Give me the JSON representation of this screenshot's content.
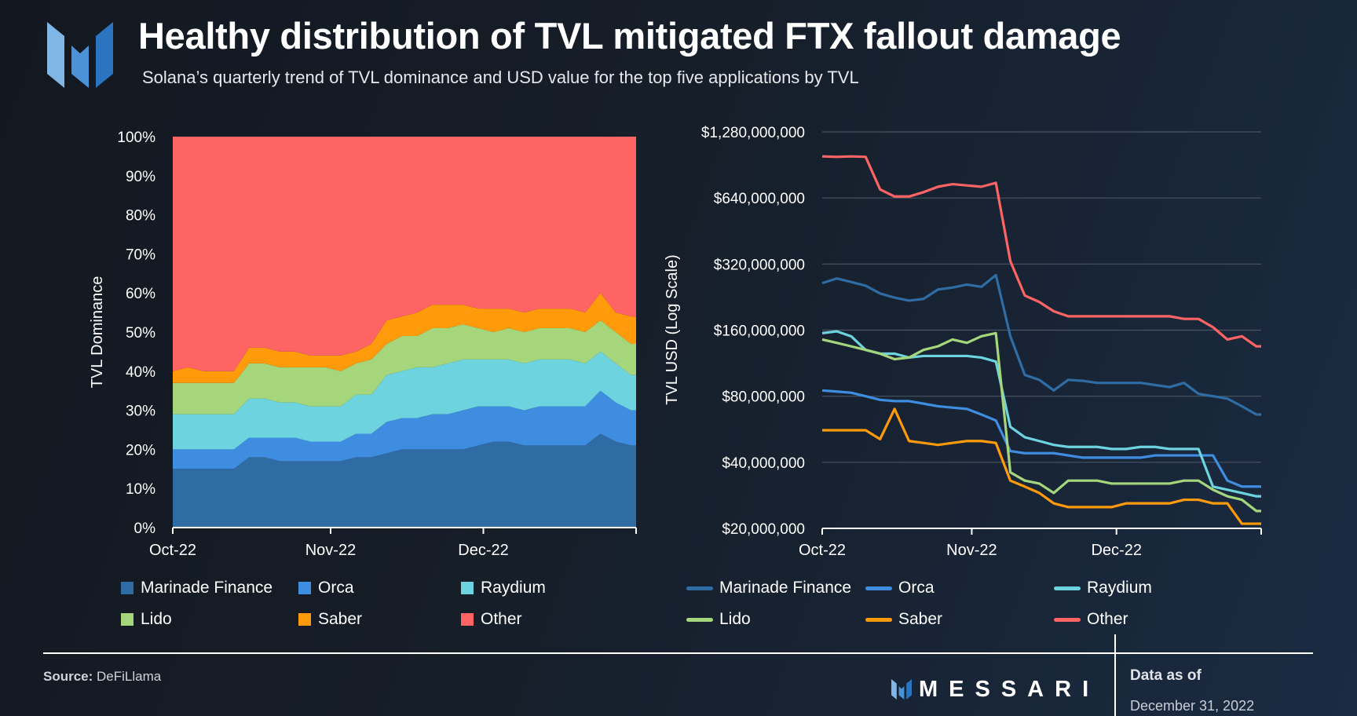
{
  "title": "Healthy distribution of TVL mitigated FTX fallout damage",
  "subtitle": "Solana’s quarterly trend of TVL dominance and USD value for the top five applications by TVL",
  "footer": {
    "source_label": "Source:",
    "source_value": "DeFiLlama",
    "brand": "MESSARI",
    "data_as_of_label": "Data as of",
    "data_as_of_date": "December 31, 2022"
  },
  "colors": {
    "Marinade Finance": "#2f6ca3",
    "Orca": "#3f8de0",
    "Raydium": "#6dd3df",
    "Lido": "#a6d67c",
    "Saber": "#ff9a0a",
    "Other": "#ff6464"
  },
  "chart_data": [
    {
      "type": "area",
      "stacked": true,
      "ylabel": "TVL Dominance",
      "xlabel": "",
      "ylim": [
        0,
        100
      ],
      "y_ticks": [
        "0%",
        "10%",
        "20%",
        "30%",
        "40%",
        "50%",
        "60%",
        "70%",
        "80%",
        "90%",
        "100%"
      ],
      "x_ticks": [
        {
          "label": "Oct-22",
          "date": "2022-10-01"
        },
        {
          "label": "Nov-22",
          "date": "2022-11-01"
        },
        {
          "label": "Dec-22",
          "date": "2022-12-01"
        }
      ],
      "xlim": [
        "2022-10-01",
        "2022-12-31"
      ],
      "grid": false,
      "legend": "bottom",
      "x": [
        "2022-10-01",
        "2022-10-04",
        "2022-10-07",
        "2022-10-10",
        "2022-10-13",
        "2022-10-16",
        "2022-10-19",
        "2022-10-22",
        "2022-10-25",
        "2022-10-28",
        "2022-10-31",
        "2022-11-03",
        "2022-11-06",
        "2022-11-09",
        "2022-11-12",
        "2022-11-15",
        "2022-11-18",
        "2022-11-21",
        "2022-11-24",
        "2022-11-27",
        "2022-11-30",
        "2022-12-03",
        "2022-12-06",
        "2022-12-09",
        "2022-12-12",
        "2022-12-15",
        "2022-12-18",
        "2022-12-21",
        "2022-12-24",
        "2022-12-27",
        "2022-12-30"
      ],
      "series": [
        {
          "name": "Marinade Finance",
          "values": [
            15,
            15,
            15,
            15,
            15,
            18,
            18,
            17,
            17,
            17,
            17,
            17,
            18,
            18,
            19,
            20,
            20,
            20,
            20,
            20,
            21,
            22,
            22,
            21,
            21,
            21,
            21,
            21,
            24,
            22,
            21
          ]
        },
        {
          "name": "Orca",
          "values": [
            5,
            5,
            5,
            5,
            5,
            5,
            5,
            6,
            6,
            5,
            5,
            5,
            6,
            6,
            8,
            8,
            8,
            9,
            9,
            10,
            10,
            9,
            9,
            9,
            10,
            10,
            10,
            10,
            11,
            10,
            9
          ]
        },
        {
          "name": "Raydium",
          "values": [
            9,
            9,
            9,
            9,
            9,
            10,
            10,
            9,
            9,
            9,
            9,
            9,
            10,
            10,
            12,
            12,
            13,
            12,
            13,
            13,
            12,
            12,
            12,
            12,
            12,
            12,
            12,
            11,
            10,
            10,
            9
          ]
        },
        {
          "name": "Lido",
          "values": [
            8,
            8,
            8,
            8,
            8,
            9,
            9,
            9,
            9,
            10,
            10,
            9,
            8,
            9,
            8,
            9,
            8,
            10,
            9,
            9,
            8,
            7,
            8,
            8,
            8,
            8,
            8,
            8,
            8,
            8,
            8
          ]
        },
        {
          "name": "Saber",
          "values": [
            3,
            4,
            3,
            3,
            3,
            4,
            4,
            4,
            4,
            3,
            3,
            4,
            3,
            4,
            6,
            5,
            6,
            6,
            6,
            5,
            5,
            6,
            5,
            5,
            5,
            5,
            5,
            5,
            7,
            5,
            7
          ]
        },
        {
          "name": "Other",
          "values": [
            60,
            59,
            60,
            60,
            60,
            54,
            54,
            55,
            55,
            56,
            56,
            56,
            55,
            53,
            47,
            46,
            45,
            43,
            43,
            43,
            44,
            44,
            44,
            45,
            44,
            44,
            44,
            45,
            40,
            45,
            46
          ]
        }
      ]
    },
    {
      "type": "line",
      "ylabel": "TVL USD (Log Scale)",
      "xlabel": "",
      "yscale": "log2",
      "ylim": [
        20000000,
        1280000000
      ],
      "y_ticks": [
        {
          "value": 20000000,
          "label": "$20,000,000"
        },
        {
          "value": 40000000,
          "label": "$40,000,000"
        },
        {
          "value": 80000000,
          "label": "$80,000,000"
        },
        {
          "value": 160000000,
          "label": "$160,000,000"
        },
        {
          "value": 320000000,
          "label": "$320,000,000"
        },
        {
          "value": 640000000,
          "label": "$640,000,000"
        },
        {
          "value": 1280000000,
          "label": "$1,280,000,000"
        }
      ],
      "x_ticks": [
        {
          "label": "Oct-22",
          "date": "2022-10-01"
        },
        {
          "label": "Nov-22",
          "date": "2022-11-01"
        },
        {
          "label": "Dec-22",
          "date": "2022-12-01"
        }
      ],
      "xlim": [
        "2022-10-01",
        "2022-12-31"
      ],
      "grid": true,
      "legend": "bottom",
      "unit": "USD millions",
      "x": [
        "2022-10-01",
        "2022-10-04",
        "2022-10-07",
        "2022-10-10",
        "2022-10-13",
        "2022-10-16",
        "2022-10-19",
        "2022-10-22",
        "2022-10-25",
        "2022-10-28",
        "2022-10-31",
        "2022-11-03",
        "2022-11-06",
        "2022-11-09",
        "2022-11-12",
        "2022-11-15",
        "2022-11-18",
        "2022-11-21",
        "2022-11-24",
        "2022-11-27",
        "2022-11-30",
        "2022-12-03",
        "2022-12-06",
        "2022-12-09",
        "2022-12-12",
        "2022-12-15",
        "2022-12-18",
        "2022-12-21",
        "2022-12-24",
        "2022-12-27",
        "2022-12-30"
      ],
      "series": [
        {
          "name": "Marinade Finance",
          "values": [
            262,
            275,
            265,
            255,
            235,
            225,
            218,
            222,
            245,
            250,
            258,
            252,
            285,
            150,
            100,
            95,
            85,
            95,
            94,
            92,
            92,
            92,
            92,
            90,
            88,
            92,
            82,
            80,
            78,
            72,
            66
          ]
        },
        {
          "name": "Orca",
          "values": [
            85,
            84,
            83,
            80,
            77,
            76,
            76,
            74,
            72,
            71,
            70,
            66,
            62,
            45,
            44,
            44,
            44,
            43,
            42,
            42,
            42,
            42,
            42,
            43,
            43,
            43,
            43,
            43,
            33,
            31,
            31
          ]
        },
        {
          "name": "Raydium",
          "values": [
            155,
            158,
            150,
            130,
            125,
            125,
            120,
            122,
            122,
            122,
            122,
            120,
            115,
            58,
            52,
            50,
            48,
            47,
            47,
            47,
            46,
            46,
            47,
            47,
            46,
            46,
            46,
            31,
            30,
            29,
            28
          ]
        },
        {
          "name": "Lido",
          "values": [
            145,
            140,
            135,
            130,
            125,
            118,
            120,
            130,
            135,
            145,
            140,
            150,
            155,
            36,
            33,
            32,
            29,
            33,
            33,
            33,
            32,
            32,
            32,
            32,
            32,
            33,
            33,
            30,
            28,
            27,
            24
          ]
        },
        {
          "name": "Saber",
          "values": [
            56,
            56,
            56,
            56,
            51,
            70,
            50,
            49,
            48,
            49,
            50,
            50,
            49,
            33,
            31,
            29,
            26,
            25,
            25,
            25,
            25,
            26,
            26,
            26,
            26,
            27,
            27,
            26,
            26,
            21,
            21
          ]
        },
        {
          "name": "Other",
          "values": [
            990,
            985,
            990,
            985,
            700,
            650,
            650,
            680,
            720,
            740,
            730,
            720,
            750,
            330,
            230,
            215,
            195,
            185,
            185,
            185,
            185,
            185,
            185,
            185,
            185,
            180,
            180,
            165,
            145,
            150,
            135
          ]
        }
      ]
    }
  ]
}
